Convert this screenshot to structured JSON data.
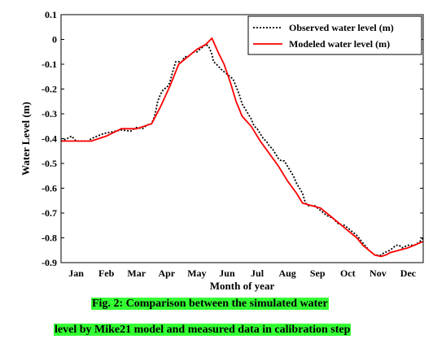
{
  "chart_data": {
    "type": "line",
    "xlabel": "Month of year",
    "ylabel": "Water Level (m)",
    "xlim": [
      0,
      12
    ],
    "ylim": [
      -0.9,
      0.1
    ],
    "yticks": [
      0.1,
      0,
      -0.1,
      -0.2,
      -0.3,
      -0.4,
      -0.5,
      -0.6,
      -0.7,
      -0.8,
      -0.9
    ],
    "ytick_labels": [
      "0.1",
      "0",
      "-0.1",
      "-0.2",
      "-0.3",
      "-0.4",
      "-0.5",
      "-0.6",
      "-0.7",
      "-0.8",
      "-0.9"
    ],
    "xtick_labels": [
      "Jan",
      "Feb",
      "Mar",
      "Apr",
      "May",
      "Jun",
      "Jul",
      "Aug",
      "Sep",
      "Oct",
      "Nov",
      "Dec"
    ],
    "legend_position": "top-right",
    "grid": false,
    "series": [
      {
        "name": "Observed water level (m)",
        "style": "dotted",
        "color": "#000000",
        "x": [
          0.0,
          0.2,
          0.35,
          0.5,
          0.7,
          0.9,
          1.0,
          1.2,
          1.4,
          1.6,
          1.8,
          2.0,
          2.3,
          2.5,
          2.7,
          2.85,
          3.0,
          3.1,
          3.2,
          3.3,
          3.4,
          3.5,
          3.6,
          3.7,
          3.8,
          3.9,
          4.0,
          4.1,
          4.2,
          4.3,
          4.4,
          4.5,
          4.6,
          4.7,
          4.8,
          4.9,
          5.0,
          5.05,
          5.15,
          5.3,
          5.5,
          5.7,
          5.8,
          5.9,
          6.0,
          6.1,
          6.2,
          6.3,
          6.4,
          6.5,
          6.6,
          6.7,
          6.8,
          6.9,
          7.0,
          7.1,
          7.2,
          7.3,
          7.4,
          7.5,
          7.6,
          7.7,
          7.8,
          7.9,
          8.0,
          8.1,
          8.2,
          8.4,
          8.6,
          8.8,
          9.0,
          9.2,
          9.4,
          9.6,
          9.8,
          10.0,
          10.2,
          10.4,
          10.6,
          10.7,
          10.8,
          10.9,
          11.0,
          11.1,
          11.2,
          11.3,
          11.5,
          11.7,
          11.85,
          12.0
        ],
        "y": [
          -0.41,
          -0.4,
          -0.39,
          -0.41,
          -0.41,
          -0.41,
          -0.4,
          -0.39,
          -0.38,
          -0.375,
          -0.37,
          -0.365,
          -0.37,
          -0.355,
          -0.36,
          -0.345,
          -0.34,
          -0.31,
          -0.25,
          -0.22,
          -0.2,
          -0.195,
          -0.175,
          -0.13,
          -0.09,
          -0.09,
          -0.09,
          -0.07,
          -0.07,
          -0.06,
          -0.05,
          -0.05,
          -0.04,
          -0.03,
          -0.02,
          -0.03,
          -0.06,
          -0.09,
          -0.1,
          -0.12,
          -0.14,
          -0.16,
          -0.19,
          -0.22,
          -0.26,
          -0.28,
          -0.3,
          -0.32,
          -0.35,
          -0.36,
          -0.38,
          -0.4,
          -0.41,
          -0.43,
          -0.44,
          -0.46,
          -0.48,
          -0.49,
          -0.49,
          -0.51,
          -0.53,
          -0.55,
          -0.58,
          -0.6,
          -0.62,
          -0.66,
          -0.67,
          -0.67,
          -0.69,
          -0.71,
          -0.72,
          -0.745,
          -0.75,
          -0.77,
          -0.79,
          -0.82,
          -0.85,
          -0.87,
          -0.87,
          -0.86,
          -0.855,
          -0.85,
          -0.84,
          -0.83,
          -0.83,
          -0.84,
          -0.83,
          -0.83,
          -0.82,
          -0.8
        ]
      },
      {
        "name": "Modeled water level (m)",
        "style": "solid",
        "color": "#ff0000",
        "x": [
          0.0,
          0.5,
          1.0,
          1.5,
          2.0,
          2.5,
          3.0,
          3.3,
          3.6,
          3.9,
          4.2,
          4.5,
          4.8,
          5.0,
          5.2,
          5.4,
          5.6,
          5.8,
          6.0,
          6.3,
          6.6,
          6.9,
          7.2,
          7.5,
          7.8,
          8.0,
          8.3,
          8.6,
          8.9,
          9.2,
          9.5,
          9.8,
          10.0,
          10.2,
          10.4,
          10.6,
          10.75,
          10.9,
          11.2,
          11.5,
          11.8,
          12.0
        ],
        "y": [
          -0.41,
          -0.41,
          -0.41,
          -0.39,
          -0.36,
          -0.36,
          -0.34,
          -0.27,
          -0.19,
          -0.1,
          -0.07,
          -0.04,
          -0.02,
          0.005,
          -0.05,
          -0.1,
          -0.17,
          -0.25,
          -0.31,
          -0.35,
          -0.41,
          -0.46,
          -0.51,
          -0.57,
          -0.62,
          -0.66,
          -0.67,
          -0.68,
          -0.71,
          -0.74,
          -0.77,
          -0.8,
          -0.83,
          -0.85,
          -0.87,
          -0.875,
          -0.87,
          -0.86,
          -0.85,
          -0.84,
          -0.825,
          -0.815
        ]
      }
    ]
  },
  "caption": {
    "line1": "Fig. 2: Comparison between the simulated water",
    "line2": "level by Mike21 model and measured data in calibration step",
    "highlight_color": "#33ff33"
  }
}
